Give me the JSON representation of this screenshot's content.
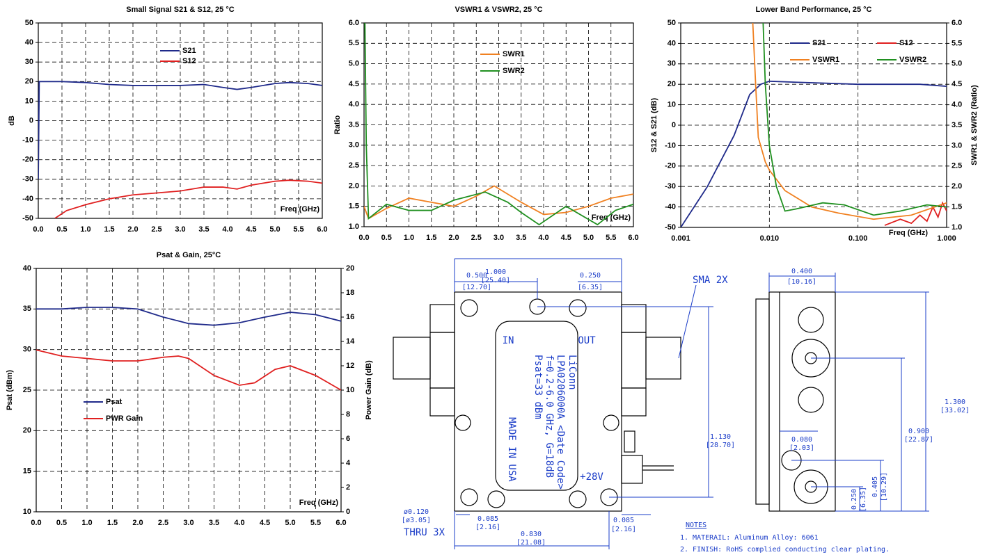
{
  "chart_data": [
    {
      "type": "line",
      "title": "Small Signal S21 & S12, 25 °C",
      "ylabel": "dB",
      "xlabel": "Freq (GHz)",
      "xlim": [
        0,
        6
      ],
      "xticks": [
        {
          "value": 0,
          "label": "0.0"
        },
        0.5,
        {
          "value": 1,
          "label": "1.0"
        },
        1.5,
        {
          "value": 2,
          "label": "2.0"
        },
        2.5,
        {
          "value": 3,
          "label": "3.0"
        },
        3.5,
        {
          "value": 4,
          "label": "4.0"
        },
        4.5,
        {
          "value": 5,
          "label": "5.0"
        },
        5.5,
        {
          "value": 6,
          "label": "6.0"
        }
      ],
      "ylim": [
        -50,
        50
      ],
      "yticks": [
        -50,
        -40,
        -30,
        -20,
        -10,
        0,
        10,
        20,
        30,
        40,
        50
      ],
      "grid": true,
      "series": [
        {
          "name": "S21",
          "color": "#1f2a8a",
          "x": [
            0,
            0.02,
            0.05,
            0.5,
            1.0,
            1.5,
            2.0,
            2.5,
            3.0,
            3.5,
            3.9,
            4.2,
            4.5,
            5.0,
            5.3,
            5.7,
            6.0
          ],
          "values": [
            -30,
            20,
            20,
            20,
            19.5,
            18.5,
            18,
            18,
            18,
            18.5,
            17,
            16,
            17,
            19,
            19.5,
            19,
            18
          ]
        },
        {
          "name": "S12",
          "color": "#e02020",
          "x": [
            0.35,
            0.6,
            1.0,
            1.5,
            2.0,
            2.5,
            3.0,
            3.5,
            3.9,
            4.2,
            4.5,
            5.0,
            5.3,
            5.7,
            6.0
          ],
          "values": [
            -50,
            -46,
            -43,
            -40,
            -38,
            -37,
            -36,
            -34,
            -34,
            -35,
            -33,
            -31,
            -30.5,
            -31,
            -32
          ]
        }
      ]
    },
    {
      "type": "line",
      "title": "VSWR1 & VSWR2,  25 °C",
      "ylabel": "Ratio",
      "xlabel": "Freq (GHz)",
      "xlim": [
        0,
        6
      ],
      "xticks": [
        {
          "value": 0,
          "label": "0.0"
        },
        0.5,
        {
          "value": 1,
          "label": "1.0"
        },
        1.5,
        {
          "value": 2,
          "label": "2.0"
        },
        2.5,
        {
          "value": 3,
          "label": "3.0"
        },
        3.5,
        {
          "value": 4,
          "label": "4.0"
        },
        4.5,
        {
          "value": 5,
          "label": "5.0"
        },
        5.5,
        {
          "value": 6,
          "label": "6.0"
        }
      ],
      "ylim": [
        1,
        6
      ],
      "yticks": [
        {
          "value": 1,
          "label": "1.0"
        },
        1.5,
        {
          "value": 2,
          "label": "2.0"
        },
        2.5,
        {
          "value": 3,
          "label": "3.0"
        },
        3.5,
        {
          "value": 4,
          "label": "4.0"
        },
        4.5,
        {
          "value": 5,
          "label": "5.0"
        },
        5.5,
        {
          "value": 6,
          "label": "6.0"
        }
      ],
      "grid": true,
      "series": [
        {
          "name": "SWR1",
          "color": "#f08020",
          "x": [
            0,
            0.1,
            0.5,
            1.0,
            1.5,
            2.0,
            2.5,
            2.9,
            3.5,
            4.0,
            4.5,
            5.0,
            5.5,
            6.0
          ],
          "values": [
            1.5,
            1.2,
            1.45,
            1.7,
            1.6,
            1.5,
            1.75,
            2.0,
            1.6,
            1.3,
            1.35,
            1.5,
            1.7,
            1.8
          ]
        },
        {
          "name": "SWR2",
          "color": "#209020",
          "x": [
            0.02,
            0.05,
            0.1,
            0.5,
            1.0,
            1.5,
            2.0,
            2.7,
            3.2,
            3.5,
            3.9,
            4.5,
            5.2,
            5.6,
            6.0
          ],
          "values": [
            6.0,
            3.0,
            1.2,
            1.55,
            1.4,
            1.4,
            1.65,
            1.85,
            1.6,
            1.35,
            1.05,
            1.5,
            1.05,
            1.4,
            1.55
          ]
        }
      ]
    },
    {
      "type": "line",
      "title": "Lower Band Performance, 25 °C",
      "ylabel": "S12 & S21 (dB)",
      "y2label": "SWR1 & SWR2 (Ratio)",
      "xlabel": "Freq (GHz)",
      "xscale": "log",
      "xlim": [
        0.001,
        1
      ],
      "xticks": [
        {
          "value": 0.001,
          "label": "0.001"
        },
        {
          "value": 0.01,
          "label": "0.010"
        },
        {
          "value": 0.1,
          "label": "0.100"
        },
        {
          "value": 1,
          "label": "1.000"
        }
      ],
      "ylim": [
        -50,
        50
      ],
      "yticks": [
        -50,
        -40,
        -30,
        -20,
        -10,
        0,
        10,
        20,
        30,
        40,
        50
      ],
      "y2lim": [
        1,
        6
      ],
      "y2ticks": [
        {
          "value": 1,
          "label": "1.0"
        },
        1.5,
        {
          "value": 2,
          "label": "2.0"
        },
        2.5,
        {
          "value": 3,
          "label": "3.0"
        },
        3.5,
        {
          "value": 4,
          "label": "4.0"
        },
        4.5,
        {
          "value": 5,
          "label": "5.0"
        },
        5.5,
        {
          "value": 6,
          "label": "6.0"
        }
      ],
      "grid": true,
      "series": [
        {
          "name": "S21",
          "color": "#1f2a8a",
          "x": [
            0.001,
            0.002,
            0.004,
            0.006,
            0.008,
            0.01,
            0.02,
            0.1,
            0.5,
            1
          ],
          "values": [
            -50,
            -30,
            -5,
            15,
            20,
            21.5,
            21,
            20,
            20,
            19
          ]
        },
        {
          "name": "S12",
          "color": "#e02020",
          "x": [
            0.2,
            0.3,
            0.4,
            0.5,
            0.6,
            0.7,
            0.8,
            0.9,
            1
          ],
          "values": [
            -49,
            -46,
            -48,
            -44,
            -47,
            -40,
            -45,
            -38,
            -42
          ]
        },
        {
          "name": "VSWR1",
          "color": "#f08020",
          "axis": "y2",
          "x": [
            0.0065,
            0.007,
            0.0075,
            0.009,
            0.01,
            0.015,
            0.03,
            0.06,
            0.15,
            0.4,
            1
          ],
          "values": [
            6,
            4.5,
            3.2,
            2.6,
            2.4,
            1.9,
            1.5,
            1.35,
            1.2,
            1.3,
            1.6
          ]
        },
        {
          "name": "VSWR2",
          "color": "#209020",
          "axis": "y2",
          "x": [
            0.0085,
            0.009,
            0.01,
            0.012,
            0.015,
            0.02,
            0.04,
            0.07,
            0.15,
            0.3,
            0.6,
            1
          ],
          "values": [
            6,
            4.5,
            3.0,
            2.0,
            1.4,
            1.45,
            1.6,
            1.55,
            1.3,
            1.4,
            1.55,
            1.5
          ]
        }
      ]
    },
    {
      "type": "line",
      "title": "Psat & Gain,  25°C",
      "ylabel": "Psat (dBm)",
      "y2label": "Power Gain (dB)",
      "xlabel": "Freq (GHz)",
      "xlim": [
        0,
        6
      ],
      "xticks": [
        {
          "value": 0,
          "label": "0.0"
        },
        0.5,
        {
          "value": 1,
          "label": "1.0"
        },
        1.5,
        {
          "value": 2,
          "label": "2.0"
        },
        2.5,
        {
          "value": 3,
          "label": "3.0"
        },
        3.5,
        {
          "value": 4,
          "label": "4.0"
        },
        4.5,
        {
          "value": 5,
          "label": "5.0"
        },
        5.5,
        {
          "value": 6,
          "label": "6.0"
        }
      ],
      "ylim": [
        10,
        40
      ],
      "yticks": [
        10,
        15,
        20,
        25,
        30,
        35,
        40
      ],
      "y2lim": [
        0,
        20
      ],
      "y2ticks": [
        0,
        2,
        4,
        6,
        8,
        10,
        12,
        14,
        16,
        18,
        20
      ],
      "grid": true,
      "series": [
        {
          "name": "Psat",
          "color": "#1f2a8a",
          "x": [
            0,
            0.5,
            1,
            1.5,
            2,
            2.5,
            3,
            3.5,
            4,
            4.5,
            5,
            5.5,
            6
          ],
          "values": [
            35,
            35,
            35.2,
            35.2,
            35,
            34,
            33.2,
            33,
            33.3,
            34,
            34.6,
            34.3,
            33.5
          ]
        },
        {
          "name": "PWR Gain",
          "color": "#e02020",
          "axis": "y2",
          "x": [
            0,
            0.5,
            1,
            1.5,
            2,
            2.5,
            2.8,
            3,
            3.5,
            4,
            4.3,
            4.7,
            5,
            5.5,
            6
          ],
          "values": [
            13.3,
            12.8,
            12.6,
            12.4,
            12.4,
            12.7,
            12.8,
            12.6,
            11.2,
            10.4,
            10.6,
            11.7,
            12.0,
            11.2,
            10.0
          ]
        }
      ]
    }
  ],
  "drawing": {
    "dims": [
      "1.000",
      "[25.40]",
      "0.500",
      "[12.70]",
      "0.250",
      "[6.35]",
      "SMA 2X",
      "1.130",
      "[28.70]",
      "ø0.120",
      "[ø3.05]",
      "THRU 3X",
      "0.085",
      "[2.16]",
      "0.830",
      "[21.08]",
      "0.085",
      "[2.16]",
      "0.400",
      "[10.16]",
      "1.300",
      "[33.02]",
      "0.900",
      "[22.87]",
      "0.080",
      "[2.03]",
      "0.405",
      "[10.29]",
      "0.250",
      "[6.35]"
    ],
    "body": [
      "IN",
      "OUT",
      "LiConn",
      "LPA0206000A <Date Code>",
      "f=0.2-6.0 GHz, G=18dB",
      "Psat=33 dBm",
      "MADE IN USA",
      "+28V"
    ],
    "notes": {
      "title": "NOTES",
      "items": [
        "1. MATERAIL: Aluminum Alloy: 6061",
        "2. FINISH:  RoHS complied conducting clear plating."
      ]
    }
  }
}
